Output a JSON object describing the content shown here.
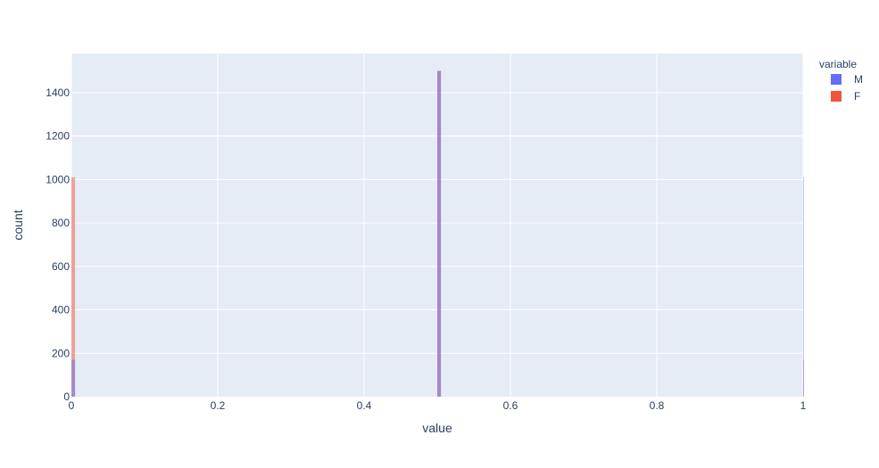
{
  "chart_data": {
    "type": "histogram",
    "xlabel": "value",
    "ylabel": "count",
    "xlim": [
      0,
      1
    ],
    "ylim": [
      0,
      1580
    ],
    "x_ticks": [
      0,
      0.2,
      0.4,
      0.6,
      0.8,
      1
    ],
    "x_tick_labels": [
      "0",
      "0.2",
      "0.4",
      "0.6",
      "0.8",
      "1"
    ],
    "y_ticks": [
      0,
      200,
      400,
      600,
      800,
      1000,
      1200,
      1400
    ],
    "y_tick_labels": [
      "0",
      "200",
      "400",
      "600",
      "800",
      "1000",
      "1200",
      "1400"
    ],
    "grid": true,
    "barmode": "overlay",
    "bin_width": 0.005,
    "legend": {
      "title": "variable",
      "position": "top-right"
    },
    "series": [
      {
        "name": "M",
        "color": "#636efa",
        "opacity": 0.5,
        "values": [
          170,
          0,
          0,
          0,
          0,
          0,
          0,
          0,
          0,
          0,
          0,
          0,
          0,
          0,
          0,
          0,
          0,
          0,
          0,
          0,
          0,
          0,
          0,
          0,
          0,
          0,
          0,
          0,
          0,
          0,
          0,
          0,
          0,
          0,
          0,
          0,
          0,
          0,
          0,
          0,
          0,
          0,
          0,
          0,
          0,
          0,
          0,
          0,
          0,
          0,
          0,
          0,
          0,
          0,
          0,
          0,
          0,
          0,
          0,
          0,
          0,
          0,
          0,
          0,
          0,
          0,
          0,
          0,
          0,
          0,
          0,
          0,
          0,
          0,
          0,
          0,
          0,
          0,
          0,
          0,
          0,
          0,
          0,
          0,
          0,
          0,
          0,
          0,
          0,
          0,
          0,
          0,
          0,
          0,
          0,
          0,
          0,
          0,
          0,
          0,
          1500,
          0,
          0,
          0,
          0,
          0,
          0,
          0,
          0,
          0,
          0,
          0,
          0,
          0,
          0,
          0,
          0,
          0,
          0,
          0,
          0,
          0,
          0,
          0,
          0,
          0,
          0,
          0,
          0,
          0,
          0,
          0,
          0,
          0,
          0,
          0,
          0,
          0,
          0,
          0,
          0,
          0,
          0,
          0,
          0,
          0,
          0,
          0,
          0,
          0,
          0,
          0,
          0,
          0,
          0,
          0,
          0,
          0,
          0,
          0,
          0,
          0,
          0,
          0,
          0,
          0,
          0,
          0,
          0,
          0,
          0,
          0,
          0,
          0,
          0,
          0,
          0,
          0,
          0,
          0,
          0,
          0,
          0,
          0,
          0,
          0,
          0,
          0,
          0,
          0,
          0,
          0,
          0,
          0,
          0,
          0,
          0,
          0,
          0,
          0,
          1010
        ]
      },
      {
        "name": "F",
        "color": "#ef553b",
        "opacity": 0.5,
        "values": [
          1010,
          0,
          0,
          0,
          0,
          0,
          0,
          0,
          0,
          0,
          0,
          0,
          0,
          0,
          0,
          0,
          0,
          0,
          0,
          0,
          0,
          0,
          0,
          0,
          0,
          0,
          0,
          0,
          0,
          0,
          0,
          0,
          0,
          0,
          0,
          0,
          0,
          0,
          0,
          0,
          0,
          0,
          0,
          0,
          0,
          0,
          0,
          0,
          0,
          0,
          0,
          0,
          0,
          0,
          0,
          0,
          0,
          0,
          0,
          0,
          0,
          0,
          0,
          0,
          0,
          0,
          0,
          0,
          0,
          0,
          0,
          0,
          0,
          0,
          0,
          0,
          0,
          0,
          0,
          0,
          0,
          0,
          0,
          0,
          0,
          0,
          0,
          0,
          0,
          0,
          0,
          0,
          0,
          0,
          0,
          0,
          0,
          0,
          0,
          0,
          1500,
          0,
          0,
          0,
          0,
          0,
          0,
          0,
          0,
          0,
          0,
          0,
          0,
          0,
          0,
          0,
          0,
          0,
          0,
          0,
          0,
          0,
          0,
          0,
          0,
          0,
          0,
          0,
          0,
          0,
          0,
          0,
          0,
          0,
          0,
          0,
          0,
          0,
          0,
          0,
          0,
          0,
          0,
          0,
          0,
          0,
          0,
          0,
          0,
          0,
          0,
          0,
          0,
          0,
          0,
          0,
          0,
          0,
          0,
          0,
          0,
          0,
          0,
          0,
          0,
          0,
          0,
          0,
          0,
          0,
          0,
          0,
          0,
          0,
          0,
          0,
          0,
          0,
          0,
          0,
          0,
          0,
          0,
          0,
          0,
          0,
          0,
          0,
          0,
          0,
          0,
          0,
          0,
          0,
          0,
          0,
          0,
          0,
          0,
          0,
          170
        ]
      }
    ]
  }
}
